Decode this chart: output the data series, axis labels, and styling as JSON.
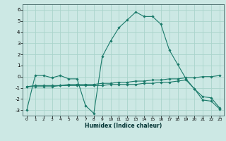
{
  "xlabel": "Humidex (Indice chaleur)",
  "bg_color": "#cce8e4",
  "grid_color": "#aad4cc",
  "line_color": "#1a7a6a",
  "ylim": [
    -3.5,
    6.5
  ],
  "xlim": [
    -0.5,
    23.5
  ],
  "yticks": [
    -3,
    -2,
    -1,
    0,
    1,
    2,
    3,
    4,
    5,
    6
  ],
  "xticks": [
    0,
    1,
    2,
    3,
    4,
    5,
    6,
    7,
    8,
    9,
    10,
    11,
    12,
    13,
    14,
    15,
    16,
    17,
    18,
    19,
    20,
    21,
    22,
    23
  ],
  "line1_x": [
    0,
    1,
    2,
    3,
    4,
    5,
    6,
    7,
    8,
    9,
    10,
    11,
    12,
    13,
    14,
    15,
    16,
    17,
    18,
    19,
    20,
    21,
    22,
    23
  ],
  "line1_y": [
    -3.0,
    0.1,
    0.1,
    -0.1,
    0.1,
    -0.2,
    -0.2,
    -2.6,
    -3.3,
    1.8,
    3.2,
    4.4,
    5.1,
    5.8,
    5.4,
    5.4,
    4.7,
    2.4,
    1.1,
    -0.2,
    -1.1,
    -1.8,
    -1.9,
    -2.8
  ],
  "line2_x": [
    0,
    1,
    2,
    3,
    4,
    5,
    6,
    7,
    8,
    9,
    10,
    11,
    12,
    13,
    14,
    15,
    16,
    17,
    18,
    19,
    20,
    21,
    22,
    23
  ],
  "line2_y": [
    -0.9,
    -0.8,
    -0.8,
    -0.8,
    -0.8,
    -0.7,
    -0.7,
    -0.7,
    -0.7,
    -0.6,
    -0.6,
    -0.5,
    -0.5,
    -0.4,
    -0.4,
    -0.3,
    -0.3,
    -0.2,
    -0.2,
    -0.1,
    -0.1,
    0.0,
    0.0,
    0.1
  ],
  "line3_x": [
    0,
    1,
    2,
    3,
    4,
    5,
    6,
    7,
    8,
    9,
    10,
    11,
    12,
    13,
    14,
    15,
    16,
    17,
    18,
    19,
    20,
    21,
    22,
    23
  ],
  "line3_y": [
    -0.9,
    -0.9,
    -0.9,
    -0.9,
    -0.8,
    -0.8,
    -0.8,
    -0.8,
    -0.8,
    -0.8,
    -0.7,
    -0.7,
    -0.7,
    -0.7,
    -0.6,
    -0.6,
    -0.5,
    -0.5,
    -0.4,
    -0.3,
    -1.1,
    -2.1,
    -2.2,
    -2.9
  ]
}
